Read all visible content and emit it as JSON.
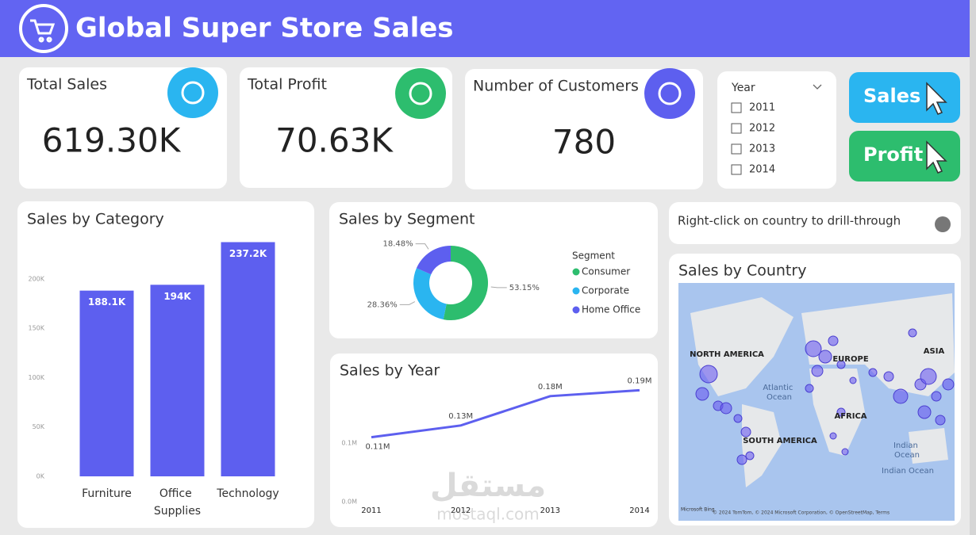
{
  "header": {
    "title": "Global Super Store Sales"
  },
  "kpis": [
    {
      "label": "Total Sales",
      "value": "619.30K"
    },
    {
      "label": "Total Profit",
      "value": "70.63K"
    },
    {
      "label": "Number of Customers",
      "value": "780"
    }
  ],
  "slicer": {
    "title": "Year",
    "options": [
      "2011",
      "2012",
      "2013",
      "2014"
    ]
  },
  "buttons": [
    "Sales",
    "Profit"
  ],
  "drill_note": "Right-click on country to drill-through",
  "map": {
    "title": "Sales by Country",
    "labels": [
      "NORTH AMERICA",
      "Atlantic Ocean",
      "EUROPE",
      "ASIA",
      "AFRICA",
      "SOUTH AMERICA",
      "Indian Ocean",
      "Indian Ocean"
    ],
    "logo": "Microsoft Bing",
    "attribution": "© 2024 TomTom, © 2024 Microsoft Corporation, © OpenStreetMap, Terms"
  },
  "watermark": [
    "مستقل",
    "mostaql.com"
  ],
  "chart_data": [
    {
      "type": "bar",
      "title": "Sales by Category",
      "categories": [
        "Furniture",
        "Office Supplies",
        "Technology"
      ],
      "values": [
        188.1,
        194,
        237.2
      ],
      "value_labels": [
        "188.1K",
        "194K",
        "237.2K"
      ],
      "color": "#5d5fef",
      "ylim": [
        0,
        240
      ],
      "yticks": [
        {
          "value": 0,
          "label": "0K"
        },
        {
          "value": 50,
          "label": "50K"
        },
        {
          "value": 100,
          "label": "100K"
        },
        {
          "value": 150,
          "label": "150K"
        },
        {
          "value": 200,
          "label": "200K"
        }
      ]
    },
    {
      "type": "pie",
      "title": "Sales by Segment",
      "legend_title": "Segment",
      "categories": [
        "Consumer",
        "Corporate",
        "Home Office"
      ],
      "values": [
        53.15,
        28.36,
        18.48
      ],
      "value_labels": [
        "53.15%",
        "28.36%",
        "18.48%"
      ],
      "colors": [
        "#2dbd6e",
        "#2ab5f0",
        "#5d5fef"
      ],
      "donut": true
    },
    {
      "type": "line",
      "title": "Sales by Year",
      "categories": [
        "2011",
        "2012",
        "2013",
        "2014"
      ],
      "values": [
        0.11,
        0.13,
        0.18,
        0.19
      ],
      "value_labels": [
        "0.11M",
        "0.13M",
        "0.18M",
        "0.19M"
      ],
      "color": "#5d5fef",
      "ylim": [
        0,
        0.2
      ],
      "yticks": [
        {
          "value": 0,
          "label": "0.0M"
        },
        {
          "value": 0.1,
          "label": "0.1M"
        }
      ]
    }
  ]
}
